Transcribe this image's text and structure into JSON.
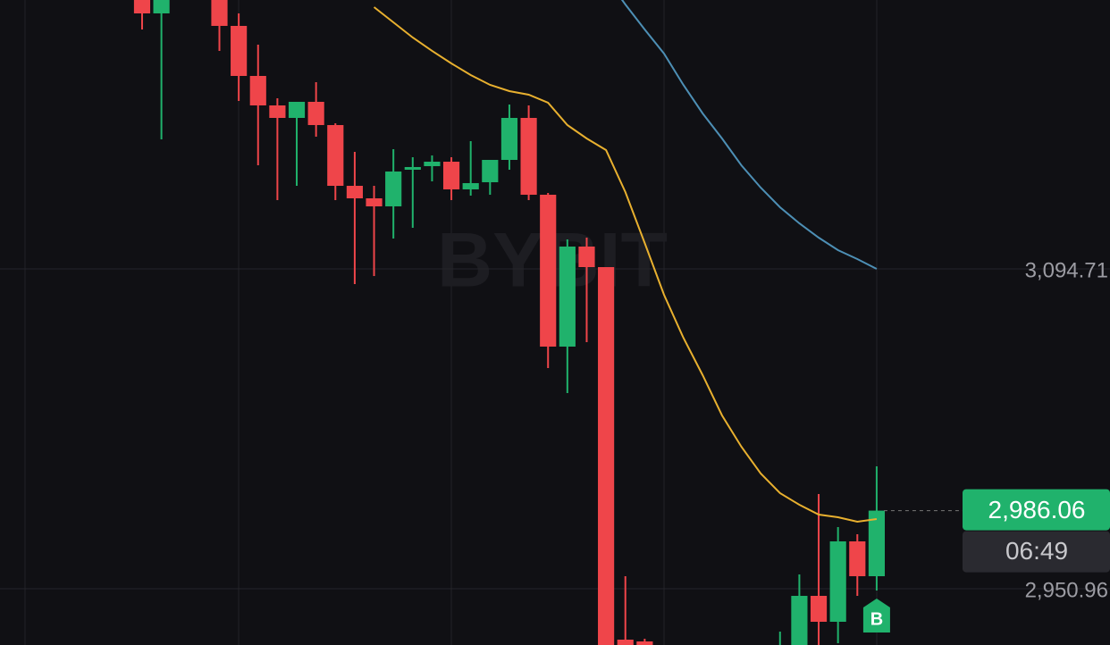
{
  "chart_data": {
    "type": "candlestick",
    "watermark": "BYBIT",
    "x": [
      0,
      1,
      4,
      5,
      6,
      7,
      8,
      9,
      10,
      11,
      12,
      13,
      14,
      15,
      16,
      17,
      18,
      19,
      20,
      21,
      22,
      23,
      24,
      25,
      26,
      33,
      34,
      35,
      36,
      37,
      38
    ],
    "open": [
      3216.78,
      3209.55,
      3216.78,
      3203.93,
      3181.44,
      3168.19,
      3162.57,
      3169.8,
      3159.36,
      3132.05,
      3126.43,
      3122.82,
      3139.28,
      3140.89,
      3142.89,
      3130.45,
      3133.66,
      3143.7,
      3162.57,
      3128.04,
      3059.78,
      3104.75,
      3095.51,
      2928.07,
      2927.27,
      2916.43,
      2918.43,
      2947.75,
      2936.1,
      2972.24,
      2956.58
    ],
    "high": [
      3219.59,
      3219.59,
      3219.59,
      3209.55,
      3195.5,
      3171.4,
      3169.8,
      3178.63,
      3160.17,
      3147.31,
      3132.05,
      3148.52,
      3144.9,
      3145.71,
      3144.9,
      3152.13,
      3143.7,
      3168.59,
      3168.19,
      3128.84,
      3107.96,
      3108.76,
      3095.51,
      2956.58,
      2928.47,
      2931.68,
      2957.38,
      2993.52,
      2978.66,
      2975.45,
      3005.97
    ],
    "low": [
      3202.32,
      3152.93,
      3192.69,
      3170.2,
      3141.29,
      3125.63,
      3132.05,
      3154.14,
      3125.63,
      3087.88,
      3091.5,
      3108.36,
      3113.18,
      3134.06,
      3125.63,
      3127.64,
      3128.04,
      3139.28,
      3125.63,
      3050.14,
      3038.9,
      3061.78,
      2914.42,
      2914.42,
      2914.42,
      2914.42,
      2918.43,
      2922.45,
      2926.46,
      2947.75,
      2950.16
    ],
    "close": [
      3209.55,
      3216.78,
      3203.93,
      3181.44,
      3168.19,
      3162.57,
      3169.8,
      3159.36,
      3132.05,
      3126.43,
      3122.82,
      3138.48,
      3140.49,
      3142.89,
      3130.45,
      3133.26,
      3143.7,
      3162.57,
      3128.04,
      3059.78,
      3104.75,
      3095.51,
      2924.46,
      2918.43,
      2918.43,
      2922.45,
      2947.75,
      2936.1,
      2972.24,
      2956.58,
      2986.06
    ],
    "up_color": "#20b26c",
    "down_color": "#ef454a",
    "lines": [
      {
        "color": "#e8b02f",
        "x": [
          12,
          13,
          14,
          15,
          16,
          17,
          18,
          19,
          20,
          21,
          22,
          23,
          24,
          25,
          26,
          27,
          28,
          29,
          30,
          31,
          32,
          33,
          34,
          35,
          36,
          37,
          38
        ],
        "values": [
          3212.36,
          3205.54,
          3198.71,
          3192.69,
          3187.06,
          3181.84,
          3177.43,
          3174.62,
          3173.01,
          3169.4,
          3159.36,
          3153.33,
          3148.11,
          3129.24,
          3106.35,
          3083.07,
          3063.79,
          3046.93,
          3028.86,
          3014.8,
          3002.76,
          2993.92,
          2988.7,
          2984.29,
          2983.08,
          2981.07,
          2982.28
        ]
      },
      {
        "color": "#4d8fb5",
        "x": [
          24,
          25,
          26,
          27,
          28,
          29,
          30,
          31,
          32,
          33,
          34,
          35,
          36,
          37,
          38
        ],
        "values": [
          3225.61,
          3213.57,
          3202.32,
          3191.48,
          3177.43,
          3164.58,
          3153.33,
          3141.29,
          3131.25,
          3122.42,
          3115.19,
          3108.76,
          3103.14,
          3099.13,
          3094.71
        ]
      }
    ],
    "xlim": [
      -7.35,
      50.07
    ],
    "ylim": [
      2925.66,
      3215.57
    ],
    "yticks": [
      {
        "value": 3094.71,
        "label": "3,094.71"
      },
      {
        "value": 2950.96,
        "label": "2,950.96"
      }
    ],
    "grid": true,
    "last_price": {
      "value": 2986.06,
      "label": "2,986.06"
    },
    "countdown": "06:49",
    "marker_label": "B"
  }
}
